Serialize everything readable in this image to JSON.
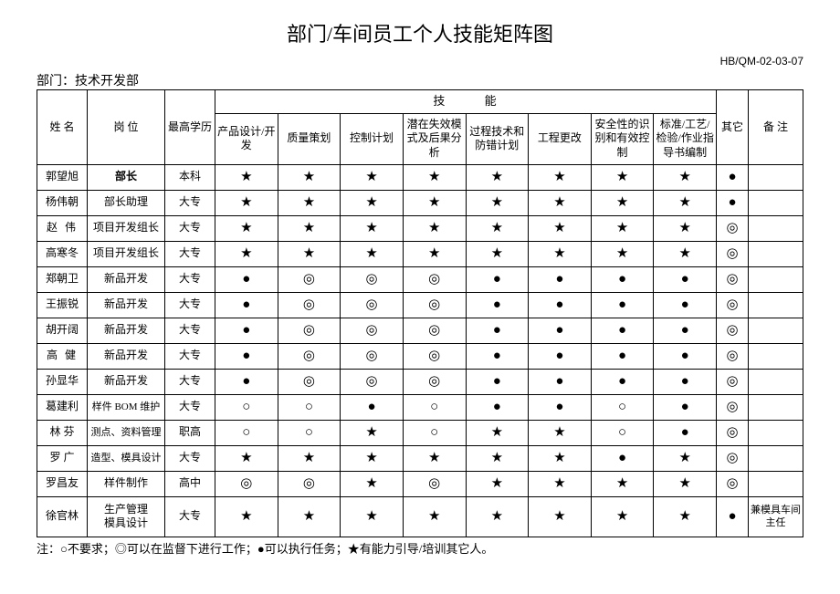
{
  "title": "部门/车间员工个人技能矩阵图",
  "doc_code": "HB/QM-02-03-07",
  "dept_label": "部门：技术开发部",
  "headers": {
    "name": "姓   名",
    "position": "岗  位",
    "education": "最高学历",
    "skill_group": "技    能",
    "other": "其它",
    "note": "备  注",
    "skills": [
      "产品设计/开发",
      "质量策划",
      "控制计划",
      "潜在失效模式及后果分析",
      "过程技术和防错计划",
      "工程更改",
      "安全性的识别和有效控制",
      "标准/工艺/检验/作业指导书编制"
    ]
  },
  "symbols": {
    "star": "★",
    "solid": "●",
    "ring": "◎",
    "circle": "○"
  },
  "rows": [
    {
      "name": "郭望旭",
      "pos": "部长",
      "pos_bold": true,
      "edu": "本科",
      "skills": [
        "★",
        "★",
        "★",
        "★",
        "★",
        "★",
        "★",
        "★"
      ],
      "other": "●",
      "note": ""
    },
    {
      "name": "杨伟朝",
      "pos": "部长助理",
      "edu": "大专",
      "skills": [
        "★",
        "★",
        "★",
        "★",
        "★",
        "★",
        "★",
        "★"
      ],
      "other": "●",
      "note": ""
    },
    {
      "name": "赵伟",
      "name_spaced": true,
      "pos": "项目开发组长",
      "edu": "大专",
      "skills": [
        "★",
        "★",
        "★",
        "★",
        "★",
        "★",
        "★",
        "★"
      ],
      "other": "◎",
      "note": ""
    },
    {
      "name": "高寒冬",
      "pos": "项目开发组长",
      "edu": "大专",
      "skills": [
        "★",
        "★",
        "★",
        "★",
        "★",
        "★",
        "★",
        "★"
      ],
      "other": "◎",
      "note": ""
    },
    {
      "name": "郑朝卫",
      "pos": "新品开发",
      "edu": "大专",
      "skills": [
        "●",
        "◎",
        "◎",
        "◎",
        "●",
        "●",
        "●",
        "●"
      ],
      "other": "◎",
      "note": ""
    },
    {
      "name": "王振锐",
      "pos": "新品开发",
      "edu": "大专",
      "skills": [
        "●",
        "◎",
        "◎",
        "◎",
        "●",
        "●",
        "●",
        "●"
      ],
      "other": "◎",
      "note": ""
    },
    {
      "name": "胡开阔",
      "pos": "新品开发",
      "edu": "大专",
      "skills": [
        "●",
        "◎",
        "◎",
        "◎",
        "●",
        "●",
        "●",
        "●"
      ],
      "other": "◎",
      "note": ""
    },
    {
      "name": "高健",
      "name_spaced": true,
      "pos": "新品开发",
      "edu": "大专",
      "skills": [
        "●",
        "◎",
        "◎",
        "◎",
        "●",
        "●",
        "●",
        "●"
      ],
      "other": "◎",
      "note": ""
    },
    {
      "name": "孙显华",
      "pos": "新品开发",
      "edu": "大专",
      "skills": [
        "●",
        "◎",
        "◎",
        "◎",
        "●",
        "●",
        "●",
        "●"
      ],
      "other": "◎",
      "note": ""
    },
    {
      "name": "葛建利",
      "pos": "样件 BOM 维护",
      "pos_small": true,
      "edu": "大专",
      "skills": [
        "○",
        "○",
        "●",
        "○",
        "●",
        "●",
        "○",
        "●"
      ],
      "other": "◎",
      "note": ""
    },
    {
      "name": "林  芬",
      "pos": "测点、资料管理",
      "pos_small": true,
      "edu": "职高",
      "skills": [
        "○",
        "○",
        "★",
        "○",
        "★",
        "★",
        "○",
        "●"
      ],
      "other": "◎",
      "note": ""
    },
    {
      "name": "罗  广",
      "pos": "造型、模具设计",
      "pos_small": true,
      "edu": "大专",
      "skills": [
        "★",
        "★",
        "★",
        "★",
        "★",
        "★",
        "●",
        "★"
      ],
      "other": "◎",
      "note": ""
    },
    {
      "name": "罗昌友",
      "pos": "样件制作",
      "edu": "高中",
      "skills": [
        "◎",
        "◎",
        "★",
        "◎",
        "★",
        "★",
        "★",
        "★"
      ],
      "other": "◎",
      "note": ""
    },
    {
      "name": "徐官林",
      "pos": "生产管理模具设计",
      "pos_multiline": true,
      "edu": "大专",
      "skills": [
        "★",
        "★",
        "★",
        "★",
        "★",
        "★",
        "★",
        "★"
      ],
      "other": "●",
      "note": "兼模具车间主任",
      "tall": true
    }
  ],
  "footnote": "注：○不要求；◎可以在监督下进行工作；●可以执行任务；★有能力引导/培训其它人。"
}
